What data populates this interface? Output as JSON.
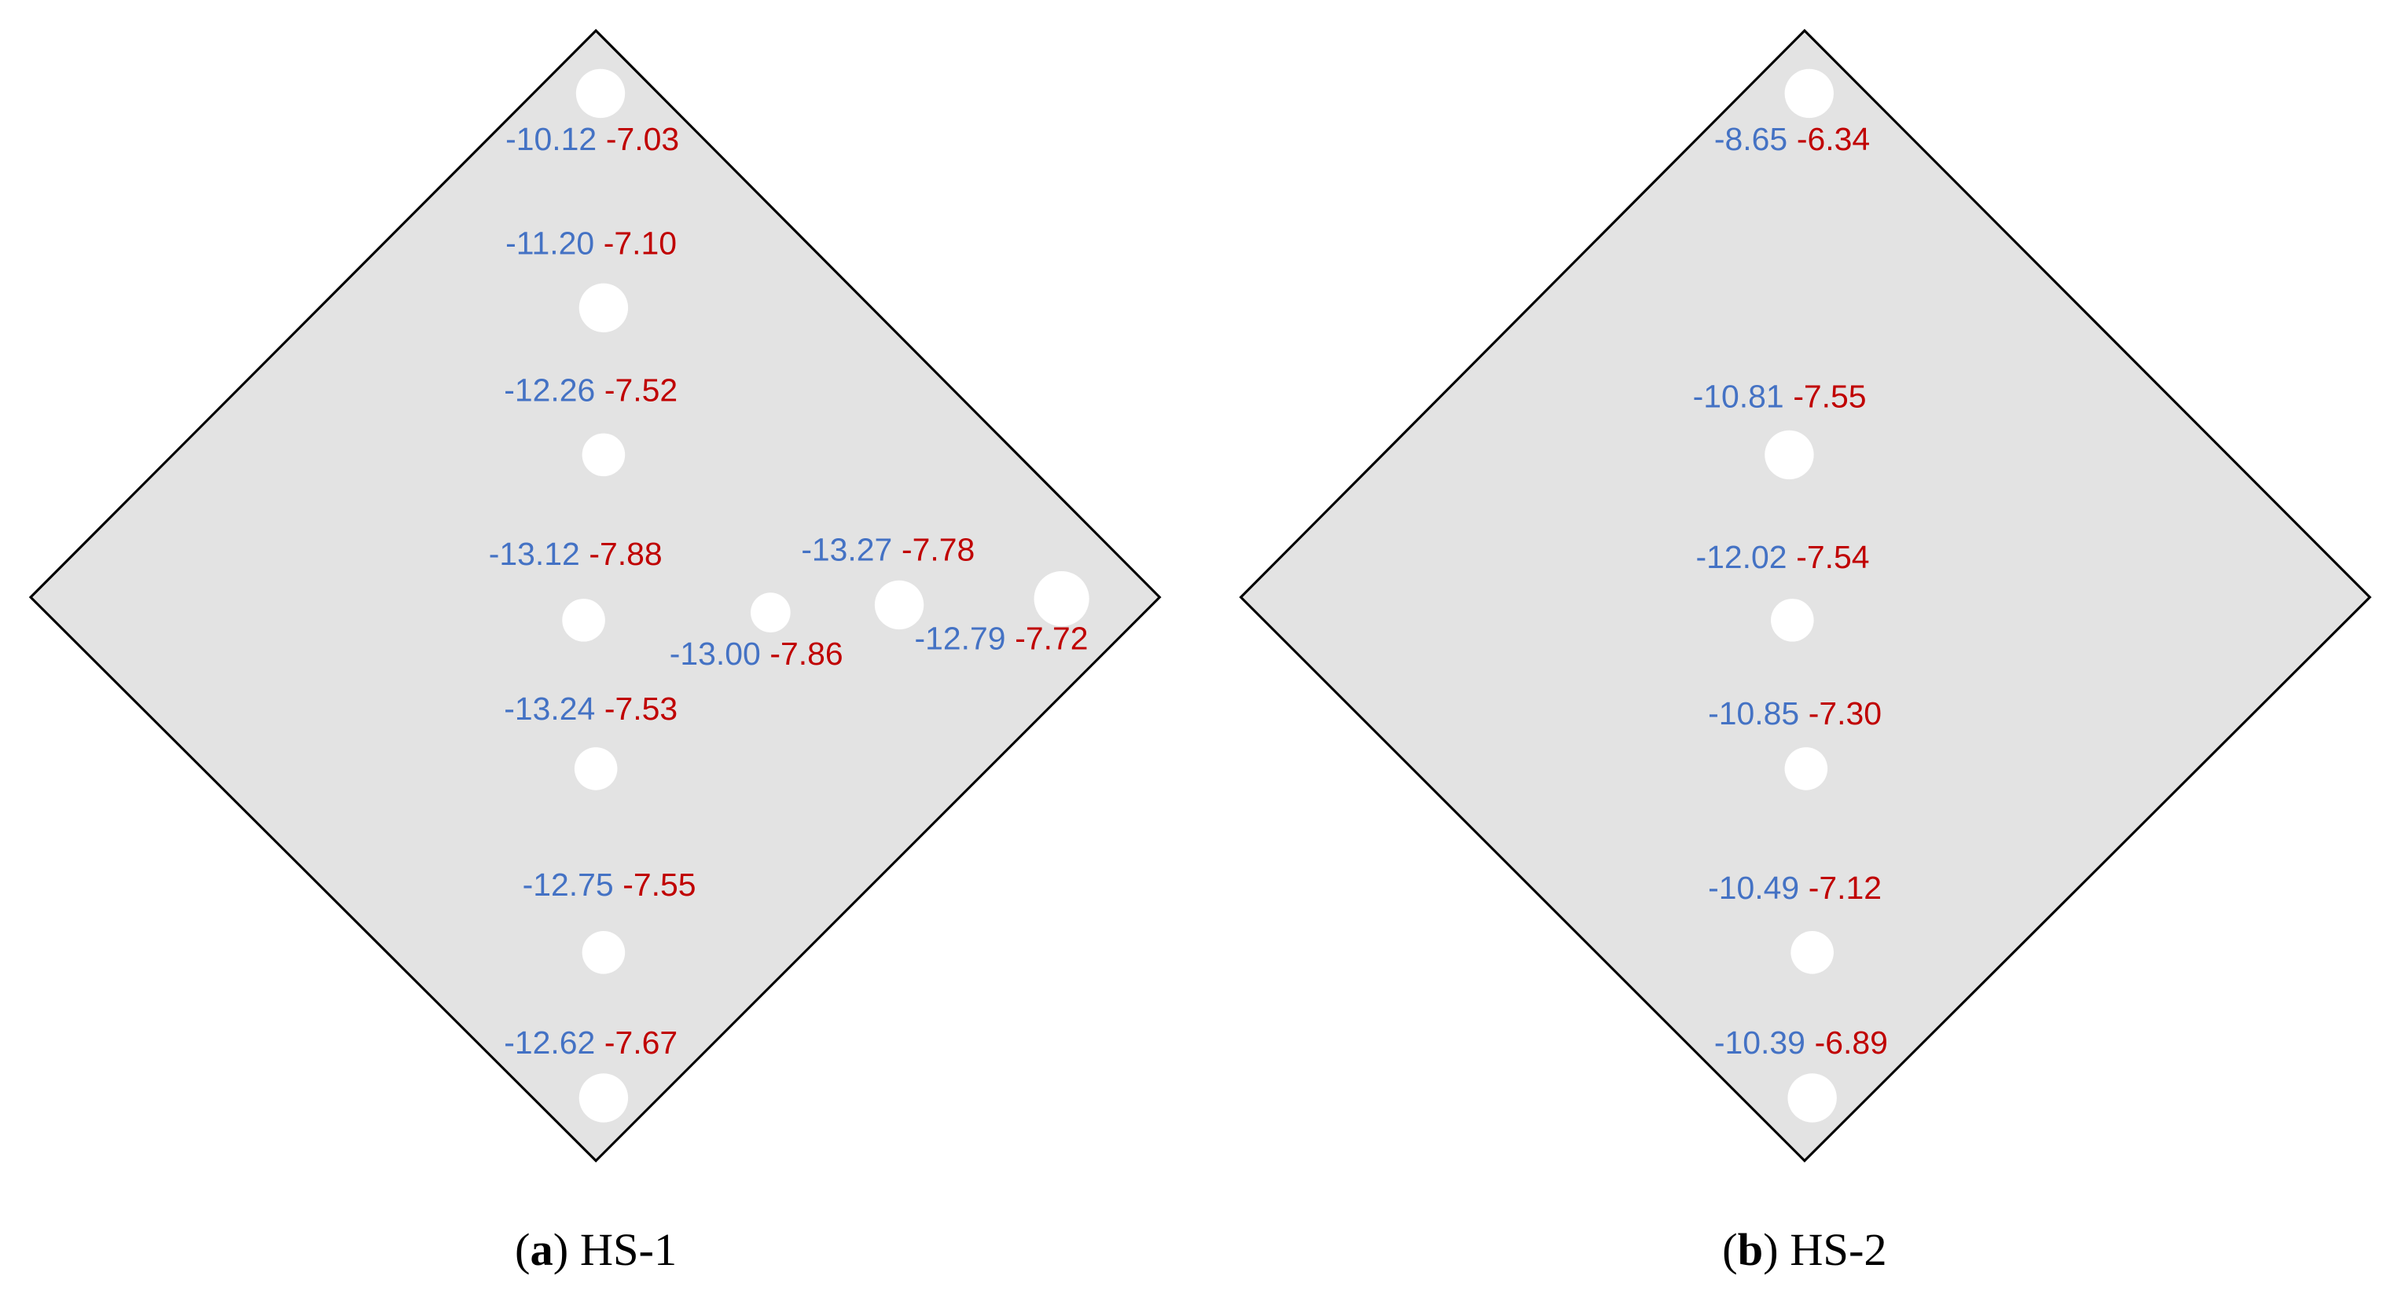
{
  "panels": [
    {
      "caption": {
        "letter": "a",
        "text": "HS-1"
      },
      "points": [
        {
          "blue": "-10.12",
          "red": "-7.03"
        },
        {
          "blue": "-11.20",
          "red": "-7.10"
        },
        {
          "blue": "-12.26",
          "red": "-7.52"
        },
        {
          "blue": "-13.12",
          "red": "-7.88"
        },
        {
          "blue": "-13.00",
          "red": "-7.86"
        },
        {
          "blue": "-13.27",
          "red": "-7.78"
        },
        {
          "blue": "-12.79",
          "red": "-7.72"
        },
        {
          "blue": "-13.24",
          "red": "-7.53"
        },
        {
          "blue": "-12.75",
          "red": "-7.55"
        },
        {
          "blue": "-12.62",
          "red": "-7.67"
        }
      ]
    },
    {
      "caption": {
        "letter": "b",
        "text": "HS-2"
      },
      "points": [
        {
          "blue": "-8.65",
          "red": "-6.34"
        },
        {
          "blue": "-10.81",
          "red": "-7.55"
        },
        {
          "blue": "-12.02",
          "red": "-7.54"
        },
        {
          "blue": "-10.85",
          "red": "-7.30"
        },
        {
          "blue": "-10.49",
          "red": "-7.12"
        },
        {
          "blue": "-10.39",
          "red": "-6.89"
        }
      ]
    }
  ]
}
